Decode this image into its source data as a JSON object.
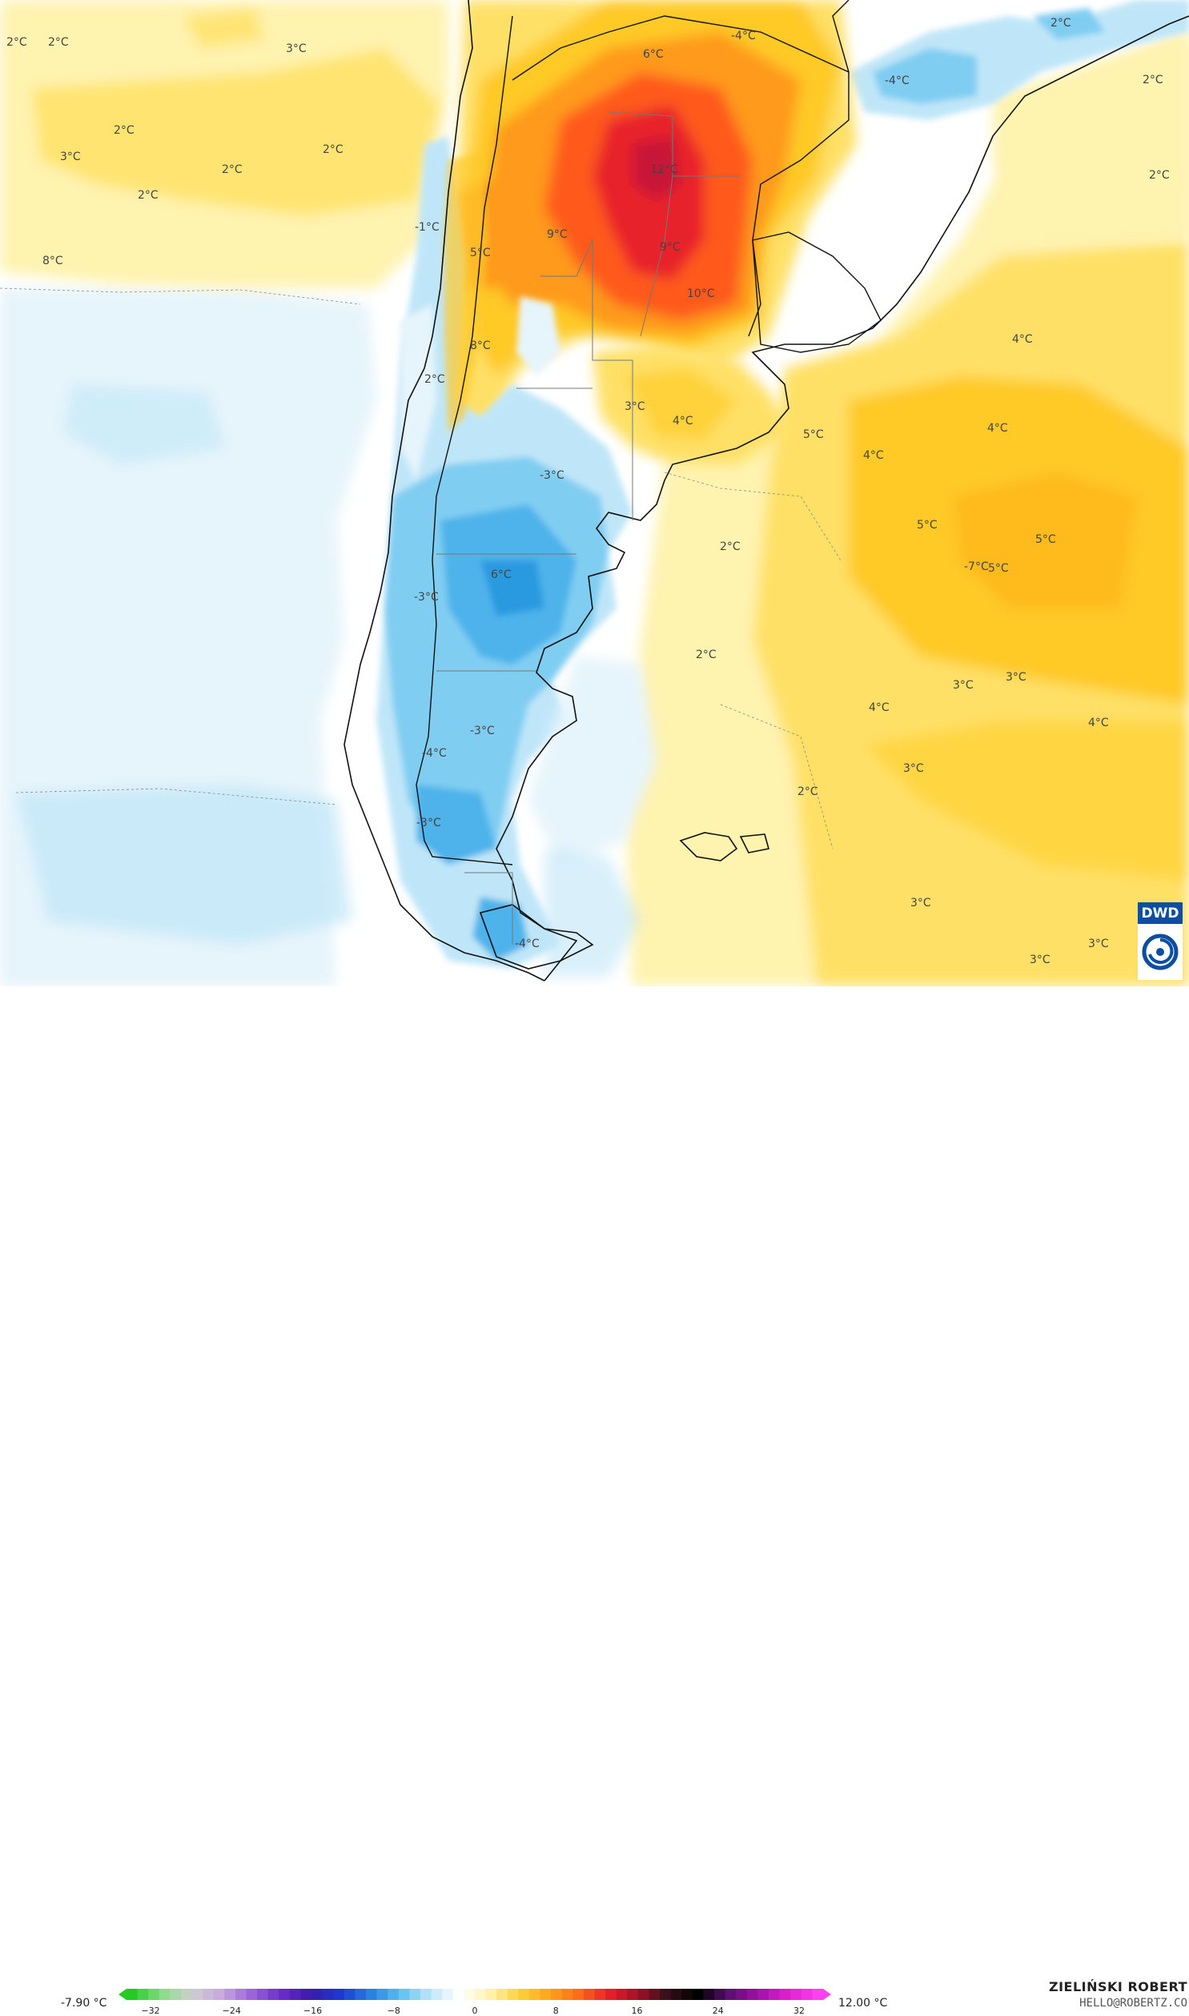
{
  "map": {
    "colors": {
      "ocean_white": "#ffffff",
      "pale_blue": "#e6f4fb",
      "light_blue": "#bfe6f8",
      "mid_blue": "#80cdf2",
      "blue": "#4db3ea",
      "pale_yellow": "#fff3b0",
      "yellow": "#ffe066",
      "gold": "#ffc926",
      "orange": "#ff9a1a",
      "red_orange": "#ff5a1a",
      "red": "#e8202a",
      "deep_red": "#c81838",
      "border": "#111111",
      "province_border": "#777777"
    },
    "temperature_labels": [
      {
        "text": "2°C"
      },
      {
        "text": "2°C"
      },
      {
        "text": "3°C"
      },
      {
        "text": "2°C"
      },
      {
        "text": "3°C"
      },
      {
        "text": "2°C"
      },
      {
        "text": "2°C"
      },
      {
        "text": "2°C"
      },
      {
        "text": "2°C"
      },
      {
        "text": "-1°C"
      },
      {
        "text": "8°C"
      },
      {
        "text": "6°C"
      },
      {
        "text": "-4°C"
      },
      {
        "text": "-4°C"
      },
      {
        "text": "2°C"
      },
      {
        "text": "2°C"
      },
      {
        "text": "12°C"
      },
      {
        "text": "9°C"
      },
      {
        "text": "5°C"
      },
      {
        "text": "9°C"
      },
      {
        "text": "10°C"
      },
      {
        "text": "4°C"
      },
      {
        "text": "8°C"
      },
      {
        "text": "2°C"
      },
      {
        "text": "4°C"
      },
      {
        "text": "3°C"
      },
      {
        "text": "4°C"
      },
      {
        "text": "5°C"
      },
      {
        "text": "4°C"
      },
      {
        "text": "5°C"
      },
      {
        "text": "-3°C"
      },
      {
        "text": "5°C"
      },
      {
        "text": "5°C"
      },
      {
        "text": "2°C"
      },
      {
        "text": "6°C"
      },
      {
        "text": "-7°C"
      },
      {
        "text": "-3°C"
      },
      {
        "text": "2°C"
      },
      {
        "text": "3°C"
      },
      {
        "text": "3°C"
      },
      {
        "text": "4°C"
      },
      {
        "text": "4°C"
      },
      {
        "text": "-3°C"
      },
      {
        "text": "-4°C"
      },
      {
        "text": "3°C"
      },
      {
        "text": "2°C"
      },
      {
        "text": "-3°C"
      },
      {
        "text": "3°C"
      },
      {
        "text": "3°C"
      },
      {
        "text": "-4°C"
      },
      {
        "text": "3°C"
      }
    ]
  },
  "colorbar": {
    "min_label": "-7.90 °C",
    "max_label": "12.00 °C",
    "ticks": [
      "−32",
      "−24",
      "−16",
      "−8",
      "0",
      "8",
      "16",
      "24",
      "32"
    ],
    "stops": [
      "#22cc22",
      "#88dd88",
      "#cfcfcf",
      "#c8a8e0",
      "#9a66d8",
      "#6a2ccc",
      "#3a1aaa",
      "#1a3ad0",
      "#2a80e0",
      "#5ac0f0",
      "#bfe6f8",
      "#ffffff",
      "#fff3b0",
      "#ffd23a",
      "#ffa41a",
      "#ff6a1a",
      "#e8202a",
      "#a01028",
      "#301018",
      "#000000",
      "#5a1070",
      "#a010a8",
      "#e020d0",
      "#ff40f0"
    ]
  },
  "credits": {
    "author": "ZIELIŃSKI ROBERT",
    "email": "HELLO@ROBERTZ.CO",
    "logo_text": "DWD"
  }
}
